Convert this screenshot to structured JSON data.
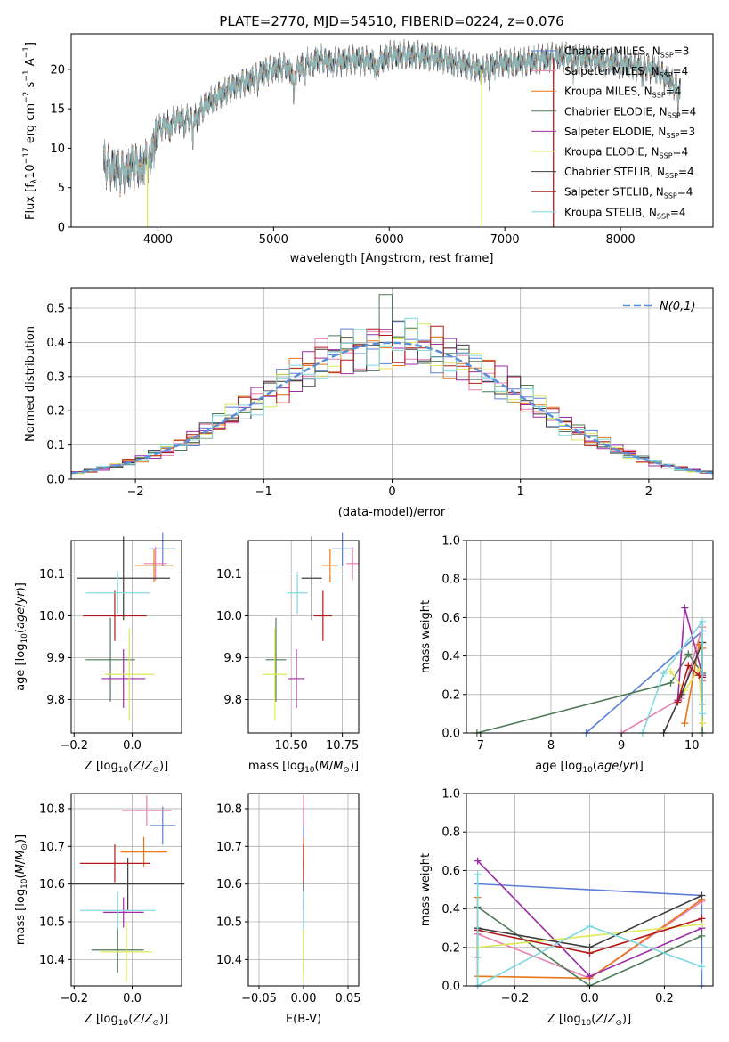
{
  "figure": {
    "title": "PLATE=2770, MJD=54510, FIBERID=0224, z=0.076"
  },
  "colors": {
    "Chabrier MILES": "#5b7fd6",
    "Salpeter MILES": "#e87fb0",
    "Kroupa MILES": "#e8771a",
    "Chabrier ELODIE": "#4e7a57",
    "Salpeter ELODIE": "#9b2ca6",
    "Kroupa ELODIE": "#dfe85a",
    "Chabrier STELIB": "#3d3d3d",
    "Salpeter STELIB": "#b21a1a",
    "Kroupa STELIB": "#7fd8df",
    "normal_curve": "#5b8fd6",
    "grid": "#b0b0b0"
  },
  "chart_data": [
    {
      "id": "spectrum",
      "type": "line",
      "xlabel": "wavelength [Angstrom, rest frame]",
      "ylabel": "Flux [f_λ 10^-17 erg cm^-2 s^-1 A^-1]",
      "xlim": [
        3250,
        8800
      ],
      "ylim": [
        0,
        24.5
      ],
      "xticks": [
        4000,
        5000,
        6000,
        7000,
        8000
      ],
      "yticks": [
        0,
        5,
        10,
        15,
        20
      ],
      "grid": false,
      "legend_position": "right",
      "legend": [
        {
          "model": "Chabrier MILES",
          "nssp": "3"
        },
        {
          "model": "Salpeter MILES",
          "nssp": "4"
        },
        {
          "model": "Kroupa MILES",
          "nssp": "4"
        },
        {
          "model": "Chabrier ELODIE",
          "nssp": "4"
        },
        {
          "model": "Salpeter ELODIE",
          "nssp": "3"
        },
        {
          "model": "Kroupa ELODIE",
          "nssp": "4"
        },
        {
          "model": "Chabrier STELIB",
          "nssp": "4"
        },
        {
          "model": "Salpeter STELIB",
          "nssp": "4"
        },
        {
          "model": "Kroupa STELIB",
          "nssp": "4"
        }
      ],
      "continuum": [
        [
          3530,
          8.2
        ],
        [
          3600,
          7.5
        ],
        [
          3700,
          7.0
        ],
        [
          3800,
          8.0
        ],
        [
          3850,
          7.4
        ],
        [
          3920,
          8.8
        ],
        [
          3960,
          11.0
        ],
        [
          4000,
          12.4
        ],
        [
          4100,
          13.2
        ],
        [
          4200,
          13.8
        ],
        [
          4300,
          13.7
        ],
        [
          4400,
          15.2
        ],
        [
          4500,
          16.5
        ],
        [
          4600,
          17.3
        ],
        [
          4700,
          18.2
        ],
        [
          4800,
          18.6
        ],
        [
          4900,
          19.6
        ],
        [
          5000,
          20.0
        ],
        [
          5100,
          20.4
        ],
        [
          5170,
          19.4
        ],
        [
          5250,
          20.5
        ],
        [
          5400,
          21.3
        ],
        [
          5500,
          20.8
        ],
        [
          5700,
          21.3
        ],
        [
          5890,
          20.8
        ],
        [
          6000,
          21.7
        ],
        [
          6200,
          21.8
        ],
        [
          6400,
          21.5
        ],
        [
          6560,
          21.0
        ],
        [
          6700,
          20.4
        ],
        [
          6800,
          19.9
        ],
        [
          6950,
          20.8
        ],
        [
          7050,
          20.8
        ],
        [
          7200,
          20.9
        ],
        [
          7300,
          21.3
        ],
        [
          7500,
          21.6
        ],
        [
          7700,
          21.4
        ],
        [
          7900,
          20.9
        ],
        [
          8100,
          20.5
        ],
        [
          8300,
          20.0
        ],
        [
          8450,
          18.2
        ],
        [
          8520,
          17.5
        ]
      ],
      "absorption_lines": [
        [
          3934,
          3.0
        ],
        [
          3969,
          2.5
        ],
        [
          4102,
          2.0
        ],
        [
          4227,
          1.5
        ],
        [
          4300,
          3.0
        ],
        [
          4340,
          1.5
        ],
        [
          4861,
          1.5
        ],
        [
          5175,
          4.0
        ],
        [
          5270,
          1.5
        ],
        [
          5335,
          1.2
        ],
        [
          5890,
          2.5
        ],
        [
          6563,
          1.0
        ],
        [
          6870,
          2.0
        ],
        [
          7590,
          2.0
        ],
        [
          8190,
          1.5
        ],
        [
          8498,
          2.0
        ]
      ],
      "spikes": [
        {
          "model": "Kroupa ELODIE",
          "x": 3910,
          "y": 0
        },
        {
          "model": "Kroupa ELODIE",
          "x": 6800,
          "y": 0
        },
        {
          "model": "Salpeter STELIB",
          "x": 7420,
          "y": 0
        }
      ]
    },
    {
      "id": "residuals",
      "type": "histogram",
      "xlabel": "(data-model)/error",
      "ylabel": "Normed distribution",
      "xlim": [
        -2.5,
        2.5
      ],
      "ylim": [
        0,
        0.56
      ],
      "xticks": [
        -2,
        -1,
        0,
        1,
        2
      ],
      "yticks": [
        0.0,
        0.1,
        0.2,
        0.3,
        0.4,
        0.5
      ],
      "grid": true,
      "bin_width": 0.1,
      "curve_label": "N(0,1)",
      "curve": "normal pdf, mean 0, sigma 1"
    },
    {
      "id": "age_vs_Z",
      "type": "errorbar",
      "xlabel": "Z [log10(Z/Z⊙)]",
      "ylabel": "age [log10(age/yr)]",
      "xlim": [
        -0.21,
        0.17
      ],
      "ylim": [
        9.72,
        10.18
      ],
      "xticks": [
        -0.2,
        0.0
      ],
      "yticks": [
        9.8,
        9.9,
        10.0,
        10.1
      ],
      "grid": true,
      "points": [
        {
          "model": "Chabrier MILES",
          "x": 0.105,
          "xerr": 0.045,
          "y": 10.16,
          "yerr": 0.04
        },
        {
          "model": "Salpeter MILES",
          "x": 0.08,
          "xerr": 0.04,
          "y": 10.125,
          "yerr": 0.04
        },
        {
          "model": "Kroupa MILES",
          "x": 0.075,
          "xerr": 0.065,
          "y": 10.12,
          "yerr": 0.04
        },
        {
          "model": "Chabrier ELODIE",
          "x": -0.075,
          "xerr": 0.085,
          "y": 9.895,
          "yerr": 0.1
        },
        {
          "model": "Salpeter ELODIE",
          "x": -0.03,
          "xerr": 0.075,
          "y": 9.85,
          "yerr": 0.07
        },
        {
          "model": "Kroupa ELODIE",
          "x": -0.01,
          "xerr": 0.085,
          "y": 9.86,
          "yerr": 0.11
        },
        {
          "model": "Chabrier STELIB",
          "x": -0.03,
          "xerr": 0.16,
          "y": 10.09,
          "yerr": 0.1
        },
        {
          "model": "Salpeter STELIB",
          "x": -0.06,
          "xerr": 0.11,
          "y": 10.0,
          "yerr": 0.06
        },
        {
          "model": "Kroupa STELIB",
          "x": -0.05,
          "xerr": 0.11,
          "y": 10.055,
          "yerr": 0.05
        }
      ]
    },
    {
      "id": "age_vs_mass",
      "type": "errorbar",
      "xlabel": "mass [log10(M/M⊙)]",
      "ylabel": "",
      "xlim": [
        10.29,
        10.83
      ],
      "ylim": [
        9.72,
        10.18
      ],
      "xticks": [
        10.5,
        10.75
      ],
      "yticks": [
        9.8,
        9.9,
        10.0,
        10.1
      ],
      "grid": true,
      "points": [
        {
          "model": "Chabrier MILES",
          "x": 10.75,
          "xerr": 0.05,
          "y": 10.16,
          "yerr": 0.04
        },
        {
          "model": "Salpeter MILES",
          "x": 10.8,
          "xerr": 0.03,
          "y": 10.125,
          "yerr": 0.04
        },
        {
          "model": "Kroupa MILES",
          "x": 10.69,
          "xerr": 0.04,
          "y": 10.12,
          "yerr": 0.04
        },
        {
          "model": "Chabrier ELODIE",
          "x": 10.425,
          "xerr": 0.05,
          "y": 9.895,
          "yerr": 0.1
        },
        {
          "model": "Salpeter ELODIE",
          "x": 10.525,
          "xerr": 0.04,
          "y": 9.85,
          "yerr": 0.07
        },
        {
          "model": "Kroupa ELODIE",
          "x": 10.42,
          "xerr": 0.06,
          "y": 9.86,
          "yerr": 0.11
        },
        {
          "model": "Chabrier STELIB",
          "x": 10.6,
          "xerr": 0.05,
          "y": 10.09,
          "yerr": 0.1
        },
        {
          "model": "Salpeter STELIB",
          "x": 10.655,
          "xerr": 0.045,
          "y": 10.0,
          "yerr": 0.06
        },
        {
          "model": "Kroupa STELIB",
          "x": 10.53,
          "xerr": 0.05,
          "y": 10.055,
          "yerr": 0.05
        }
      ]
    },
    {
      "id": "weight_vs_age",
      "type": "line",
      "xlabel": "age [log10(age/yr)]",
      "ylabel": "mass weight",
      "xlim": [
        6.8,
        10.3
      ],
      "ylim": [
        0,
        1.0
      ],
      "xticks": [
        7,
        8,
        9,
        10
      ],
      "yticks": [
        0.0,
        0.2,
        0.4,
        0.6,
        0.8,
        1.0
      ],
      "grid": true,
      "series": [
        {
          "model": "Chabrier MILES",
          "points": [
            [
              8.5,
              0.0
            ],
            [
              10.15,
              0.53
            ],
            [
              10.15,
              0.47
            ]
          ]
        },
        {
          "model": "Salpeter MILES",
          "points": [
            [
              9.0,
              0.0
            ],
            [
              9.85,
              0.18
            ],
            [
              10.15,
              0.55
            ],
            [
              10.15,
              0.27
            ]
          ]
        },
        {
          "model": "Kroupa MILES",
          "points": [
            [
              9.9,
              0.05
            ],
            [
              10.1,
              0.46
            ],
            [
              10.15,
              0.44
            ],
            [
              10.15,
              0.05
            ]
          ]
        },
        {
          "model": "Chabrier ELODIE",
          "points": [
            [
              6.95,
              0.0
            ],
            [
              9.7,
              0.26
            ],
            [
              9.95,
              0.41
            ],
            [
              10.15,
              0.31
            ],
            [
              10.15,
              0.0
            ]
          ]
        },
        {
          "model": "Salpeter ELODIE",
          "points": [
            [
              9.8,
              0.17
            ],
            [
              9.9,
              0.65
            ],
            [
              10.15,
              0.3
            ]
          ]
        },
        {
          "model": "Kroupa ELODIE",
          "points": [
            [
              9.7,
              0.32
            ],
            [
              9.9,
              0.22
            ],
            [
              10.1,
              0.33
            ],
            [
              10.15,
              0.05
            ]
          ]
        },
        {
          "model": "Chabrier STELIB",
          "points": [
            [
              9.6,
              0.0
            ],
            [
              9.85,
              0.2
            ],
            [
              10.15,
              0.47
            ],
            [
              10.15,
              0.15
            ]
          ]
        },
        {
          "model": "Salpeter STELIB",
          "points": [
            [
              9.8,
              0.16
            ],
            [
              9.95,
              0.35
            ],
            [
              10.1,
              0.3
            ],
            [
              10.15,
              0.29
            ]
          ]
        },
        {
          "model": "Kroupa STELIB",
          "points": [
            [
              9.3,
              0.0
            ],
            [
              9.6,
              0.31
            ],
            [
              10.15,
              0.58
            ],
            [
              10.15,
              0.1
            ]
          ]
        }
      ]
    },
    {
      "id": "mass_vs_Z",
      "type": "errorbar",
      "xlabel": "Z [log10(Z/Z⊙)]",
      "ylabel": "mass [log10(M/M⊙)]",
      "xlim": [
        -0.21,
        0.17
      ],
      "ylim": [
        10.33,
        10.84
      ],
      "xticks": [
        -0.2,
        0.0
      ],
      "yticks": [
        10.4,
        10.5,
        10.6,
        10.7,
        10.8
      ],
      "grid": true,
      "points": [
        {
          "model": "Chabrier MILES",
          "x": 0.105,
          "xerr": 0.045,
          "y": 10.755,
          "yerr": 0.05
        },
        {
          "model": "Salpeter MILES",
          "x": 0.05,
          "xerr": 0.085,
          "y": 10.795,
          "yerr": 0.04
        },
        {
          "model": "Kroupa MILES",
          "x": 0.04,
          "xerr": 0.08,
          "y": 10.685,
          "yerr": 0.04
        },
        {
          "model": "Chabrier ELODIE",
          "x": -0.05,
          "xerr": 0.09,
          "y": 10.425,
          "yerr": 0.06
        },
        {
          "model": "Salpeter ELODIE",
          "x": -0.03,
          "xerr": 0.07,
          "y": 10.525,
          "yerr": 0.04
        },
        {
          "model": "Kroupa ELODIE",
          "x": -0.02,
          "xerr": 0.09,
          "y": 10.42,
          "yerr": 0.08
        },
        {
          "model": "Chabrier STELIB",
          "x": -0.015,
          "xerr": 0.195,
          "y": 10.6,
          "yerr": 0.07
        },
        {
          "model": "Salpeter STELIB",
          "x": -0.06,
          "xerr": 0.12,
          "y": 10.655,
          "yerr": 0.05
        },
        {
          "model": "Kroupa STELIB",
          "x": -0.05,
          "xerr": 0.13,
          "y": 10.53,
          "yerr": 0.05
        }
      ]
    },
    {
      "id": "mass_vs_EBV",
      "type": "errorbar",
      "xlabel": "E(B-V)",
      "ylabel": "",
      "xlim": [
        -0.062,
        0.062
      ],
      "ylim": [
        10.33,
        10.84
      ],
      "xticks": [
        -0.05,
        0.0,
        0.05
      ],
      "yticks": [
        10.4,
        10.5,
        10.6,
        10.7,
        10.8
      ],
      "grid": true,
      "points": [
        {
          "model": "Chabrier MILES",
          "x": 0.0,
          "xerr": 0.0,
          "y": 10.755,
          "yerr": 0.05
        },
        {
          "model": "Salpeter MILES",
          "x": 0.0,
          "xerr": 0.0,
          "y": 10.795,
          "yerr": 0.04
        },
        {
          "model": "Kroupa MILES",
          "x": 0.0,
          "xerr": 0.0,
          "y": 10.685,
          "yerr": 0.04
        },
        {
          "model": "Chabrier ELODIE",
          "x": 0.0,
          "xerr": 0.0,
          "y": 10.425,
          "yerr": 0.06
        },
        {
          "model": "Salpeter ELODIE",
          "x": 0.0,
          "xerr": 0.0,
          "y": 10.525,
          "yerr": 0.04
        },
        {
          "model": "Kroupa ELODIE",
          "x": 0.0,
          "xerr": 0.0,
          "y": 10.42,
          "yerr": 0.08
        },
        {
          "model": "Chabrier STELIB",
          "x": 0.0,
          "xerr": 0.0,
          "y": 10.6,
          "yerr": 0.07
        },
        {
          "model": "Salpeter STELIB",
          "x": 0.0,
          "xerr": 0.0,
          "y": 10.655,
          "yerr": 0.05
        },
        {
          "model": "Kroupa STELIB",
          "x": 0.0,
          "xerr": 0.0,
          "y": 10.53,
          "yerr": 0.05
        }
      ]
    },
    {
      "id": "weight_vs_Z",
      "type": "line",
      "xlabel": "Z [log10(Z/Z⊙)]",
      "ylabel": "mass weight",
      "xlim": [
        -0.33,
        0.33
      ],
      "ylim": [
        0,
        1.0
      ],
      "xticks": [
        -0.2,
        0.0,
        0.2
      ],
      "yticks": [
        0.0,
        0.2,
        0.4,
        0.6,
        0.8,
        1.0
      ],
      "grid": true,
      "series": [
        {
          "model": "Chabrier MILES",
          "points": [
            [
              -0.3,
              0.53
            ],
            [
              0.3,
              0.47
            ],
            [
              0.3,
              0.0
            ]
          ]
        },
        {
          "model": "Salpeter MILES",
          "points": [
            [
              -0.3,
              0.0
            ],
            [
              -0.3,
              0.27
            ],
            [
              0.0,
              0.04
            ],
            [
              0.3,
              0.44
            ]
          ]
        },
        {
          "model": "Kroupa MILES",
          "points": [
            [
              -0.3,
              0.46
            ],
            [
              -0.3,
              0.05
            ],
            [
              0.0,
              0.04
            ],
            [
              0.3,
              0.45
            ]
          ]
        },
        {
          "model": "Chabrier ELODIE",
          "points": [
            [
              -0.3,
              0.41
            ],
            [
              0.0,
              0.0
            ],
            [
              0.3,
              0.26
            ]
          ]
        },
        {
          "model": "Salpeter ELODIE",
          "points": [
            [
              -0.3,
              0.65
            ],
            [
              0.0,
              0.05
            ],
            [
              0.3,
              0.3
            ]
          ]
        },
        {
          "model": "Kroupa ELODIE",
          "points": [
            [
              -0.3,
              0.2
            ],
            [
              0.0,
              0.26
            ],
            [
              0.3,
              0.32
            ]
          ]
        },
        {
          "model": "Chabrier STELIB",
          "points": [
            [
              -0.3,
              0.15
            ],
            [
              -0.3,
              0.3
            ],
            [
              0.0,
              0.2
            ],
            [
              0.3,
              0.47
            ]
          ]
        },
        {
          "model": "Salpeter STELIB",
          "points": [
            [
              -0.3,
              0.29
            ],
            [
              0.0,
              0.17
            ],
            [
              0.3,
              0.35
            ]
          ]
        },
        {
          "model": "Kroupa STELIB",
          "points": [
            [
              -0.3,
              0.58
            ],
            [
              -0.3,
              0.0
            ],
            [
              0.0,
              0.31
            ],
            [
              0.3,
              0.1
            ]
          ]
        }
      ]
    }
  ]
}
